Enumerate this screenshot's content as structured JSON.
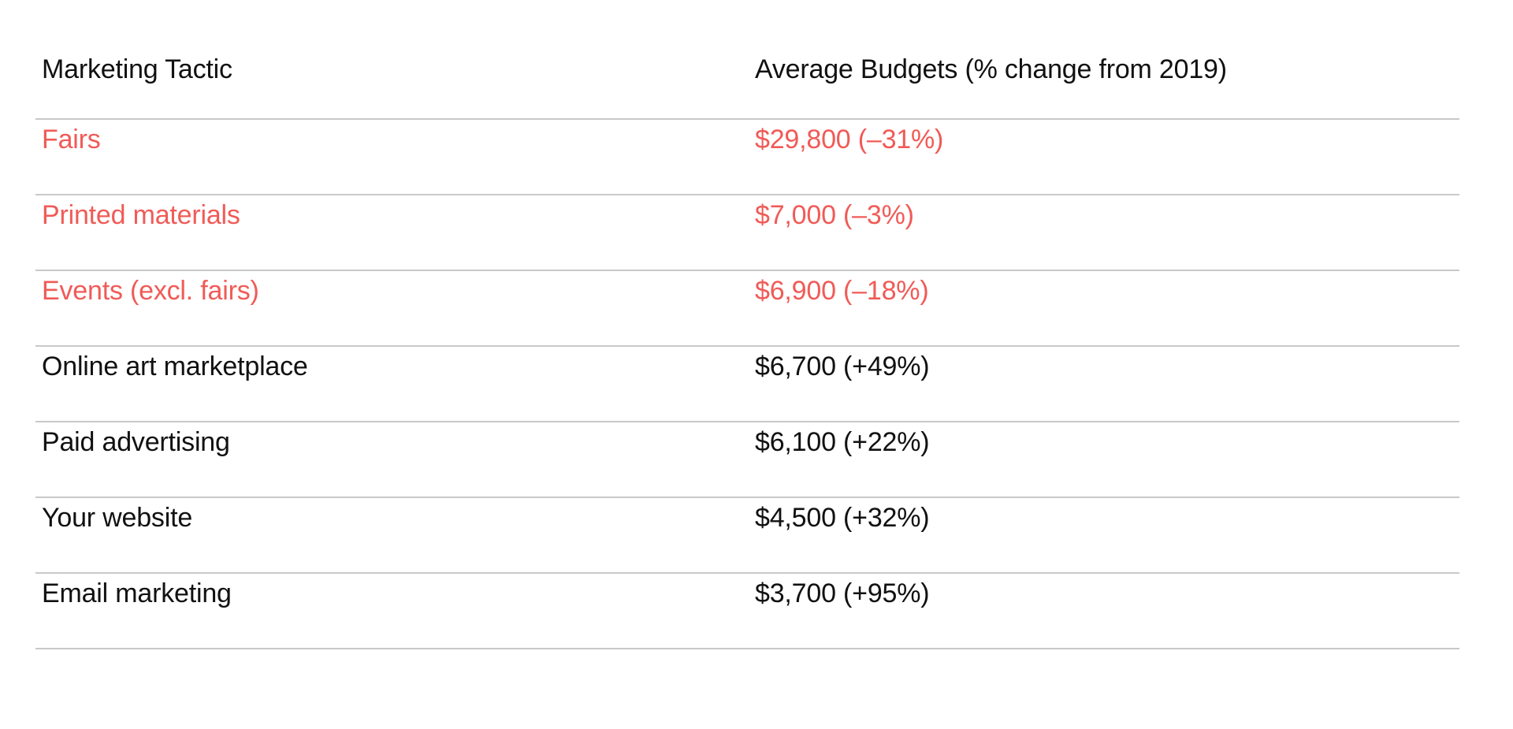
{
  "table": {
    "header": {
      "col1": "Marketing Tactic",
      "col2": "Average Budgets (% change from 2019)"
    },
    "rows": [
      {
        "tactic": "Fairs",
        "budget": "$29,800 (–31%)",
        "negative": true
      },
      {
        "tactic": "Printed materials",
        "budget": "$7,000 (–3%)",
        "negative": true
      },
      {
        "tactic": "Events (excl. fairs)",
        "budget": "$6,900 (–18%)",
        "negative": true
      },
      {
        "tactic": "Online art marketplace",
        "budget": "$6,700 (+49%)",
        "negative": false
      },
      {
        "tactic": "Paid advertising",
        "budget": "$6,100 (+22%)",
        "negative": false
      },
      {
        "tactic": "Your website",
        "budget": "$4,500 (+32%)",
        "negative": false
      },
      {
        "tactic": "Email marketing",
        "budget": "$3,700 (+95%)",
        "negative": false
      }
    ]
  },
  "colors": {
    "negative": "#F05B57",
    "text": "#111111",
    "divider": "#C9C9C9",
    "bg": "#FFFFFF"
  },
  "chart_data": {
    "type": "table",
    "columns": [
      "Marketing Tactic",
      "Average Budgets (% change from 2019)"
    ],
    "rows": [
      {
        "tactic": "Fairs",
        "avg_budget_usd": 29800,
        "pct_change_from_2019": -31
      },
      {
        "tactic": "Printed materials",
        "avg_budget_usd": 7000,
        "pct_change_from_2019": -3
      },
      {
        "tactic": "Events (excl. fairs)",
        "avg_budget_usd": 6900,
        "pct_change_from_2019": -18
      },
      {
        "tactic": "Online art marketplace",
        "avg_budget_usd": 6700,
        "pct_change_from_2019": 49
      },
      {
        "tactic": "Paid advertising",
        "avg_budget_usd": 6100,
        "pct_change_from_2019": 22
      },
      {
        "tactic": "Your website",
        "avg_budget_usd": 4500,
        "pct_change_from_2019": 32
      },
      {
        "tactic": "Email marketing",
        "avg_budget_usd": 3700,
        "pct_change_from_2019": 95
      }
    ],
    "notes": "Rows with negative % change rendered in coral red; positive rows in black. No gridlines other than horizontal row dividers."
  }
}
